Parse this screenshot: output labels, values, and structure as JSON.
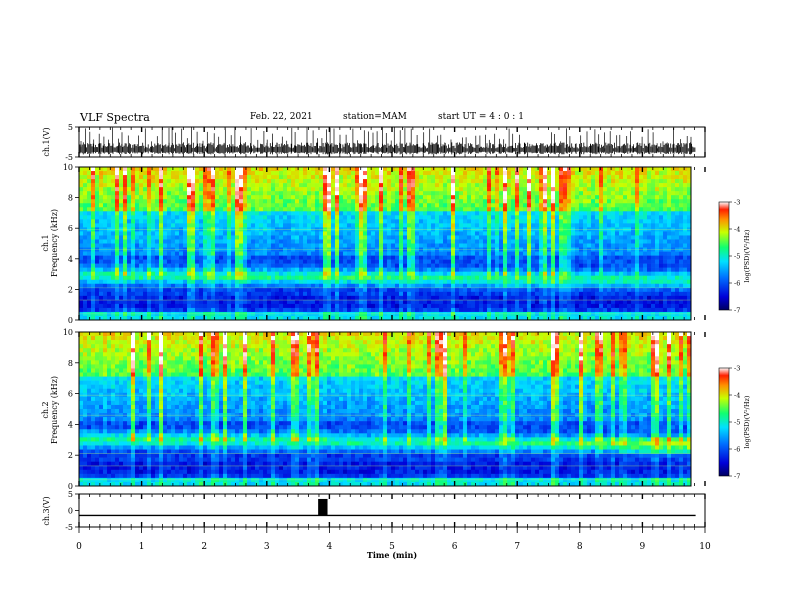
{
  "header": {
    "title": "VLF Spectra",
    "date": "Feb. 22, 2021",
    "station": "station=MAM",
    "start_ut": "start UT =  4 : 0 : 1"
  },
  "chart_data": [
    {
      "type": "line",
      "panel": "ch1-waveform",
      "ylabel": "ch.1(V)",
      "ylim": [
        -5,
        5
      ],
      "yticks": [
        5,
        -5
      ],
      "xlim": [
        0,
        10
      ],
      "description_note": "dense impulsive waveform"
    },
    {
      "type": "heatmap",
      "panel": "ch1-spectrogram",
      "ylabel": "ch.1 Frequency (kHz)",
      "ylim": [
        0,
        10
      ],
      "yticks": [
        0,
        2,
        4,
        6,
        8,
        10
      ],
      "xlim": [
        0,
        10
      ],
      "colorbar": {
        "label": "log(PSD)(V²/Hz)",
        "range": [
          -7,
          -3
        ],
        "ticks": [
          -3,
          -4,
          -5,
          -6,
          -7
        ]
      },
      "band_center_khz": 2.6,
      "band_trend_khz": [
        2.9,
        2.6
      ]
    },
    {
      "type": "heatmap",
      "panel": "ch2-spectrogram",
      "ylabel": "ch.2 Frequency (kHz)",
      "ylim": [
        0,
        10
      ],
      "yticks": [
        0,
        2,
        4,
        6,
        8,
        10
      ],
      "xlim": [
        0,
        10
      ],
      "colorbar": {
        "label": "log(PSD)(V²/Hz)",
        "range": [
          -7,
          -3
        ],
        "ticks": [
          -3,
          -4,
          -5,
          -6,
          -7
        ]
      },
      "band_center_khz": 2.8,
      "band_trend_khz": [
        3.0,
        2.7
      ]
    },
    {
      "type": "line",
      "panel": "ch3-signal",
      "ylabel": "ch.3(V)",
      "ylim": [
        -5,
        5
      ],
      "yticks": [
        5,
        0,
        -5
      ],
      "xlim": [
        0,
        10
      ],
      "baseline_v": -1.5,
      "pulse": {
        "start_min": 3.82,
        "end_min": 3.97,
        "level_v": 3.5
      }
    }
  ],
  "xaxis": {
    "label": "Time (min)",
    "ticks": [
      0,
      1,
      2,
      3,
      4,
      5,
      6,
      7,
      8,
      9,
      10
    ],
    "data_end_min": 9.85
  }
}
